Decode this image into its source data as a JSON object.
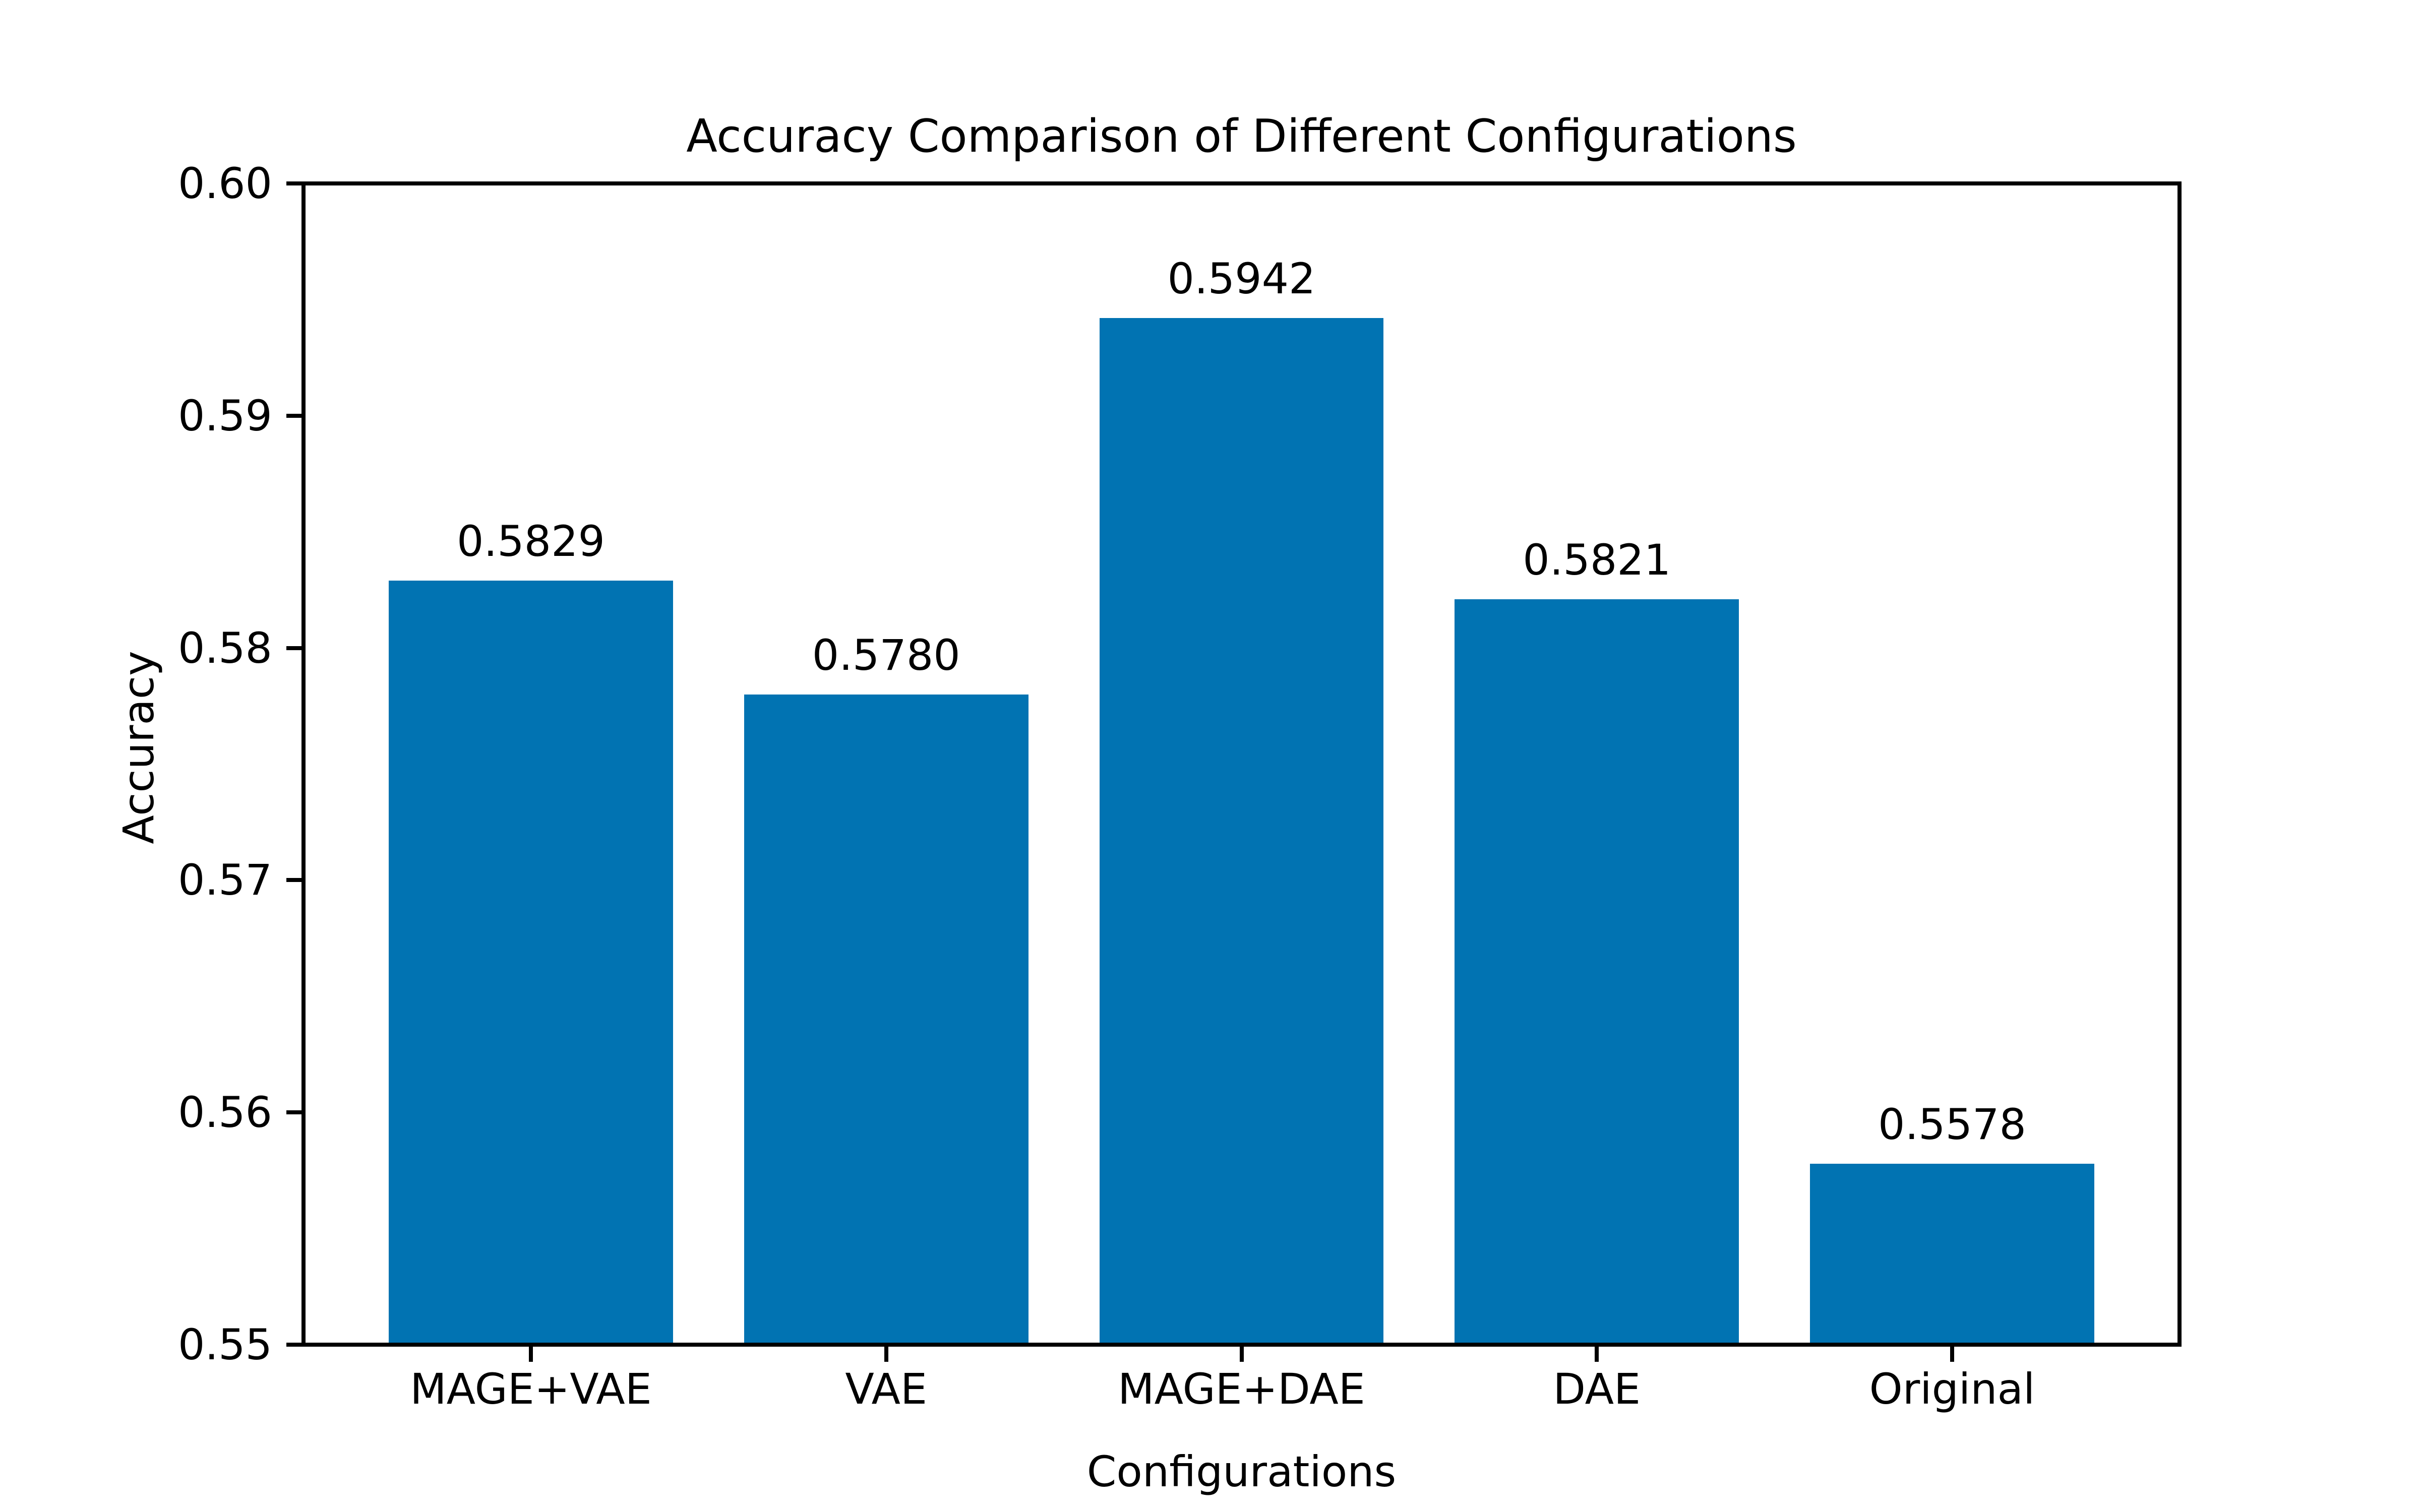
{
  "page": {
    "background": "#ffffff"
  },
  "chart_data": {
    "type": "bar",
    "title": "Accuracy Comparison of Different Configurations",
    "xlabel": "Configurations",
    "ylabel": "Accuracy",
    "categories": [
      "MAGE+VAE",
      "VAE",
      "MAGE+DAE",
      "DAE",
      "Original"
    ],
    "values": [
      0.5829,
      0.578,
      0.5942,
      0.5821,
      0.5578
    ],
    "value_labels": [
      "0.5829",
      "0.5780",
      "0.5942",
      "0.5821",
      "0.5578"
    ],
    "ylim": [
      0.55,
      0.6
    ],
    "ytick_values": [
      0.55,
      0.56,
      0.57,
      0.58,
      0.59,
      0.6
    ],
    "ytick_labels": [
      "0.55",
      "0.56",
      "0.57",
      "0.58",
      "0.59",
      "0.60"
    ],
    "bar_color": "#0173b2",
    "axis_color": "#000000",
    "text_color": "#000000",
    "bar_width_fraction": 0.8,
    "grid": false,
    "legend": null
  }
}
